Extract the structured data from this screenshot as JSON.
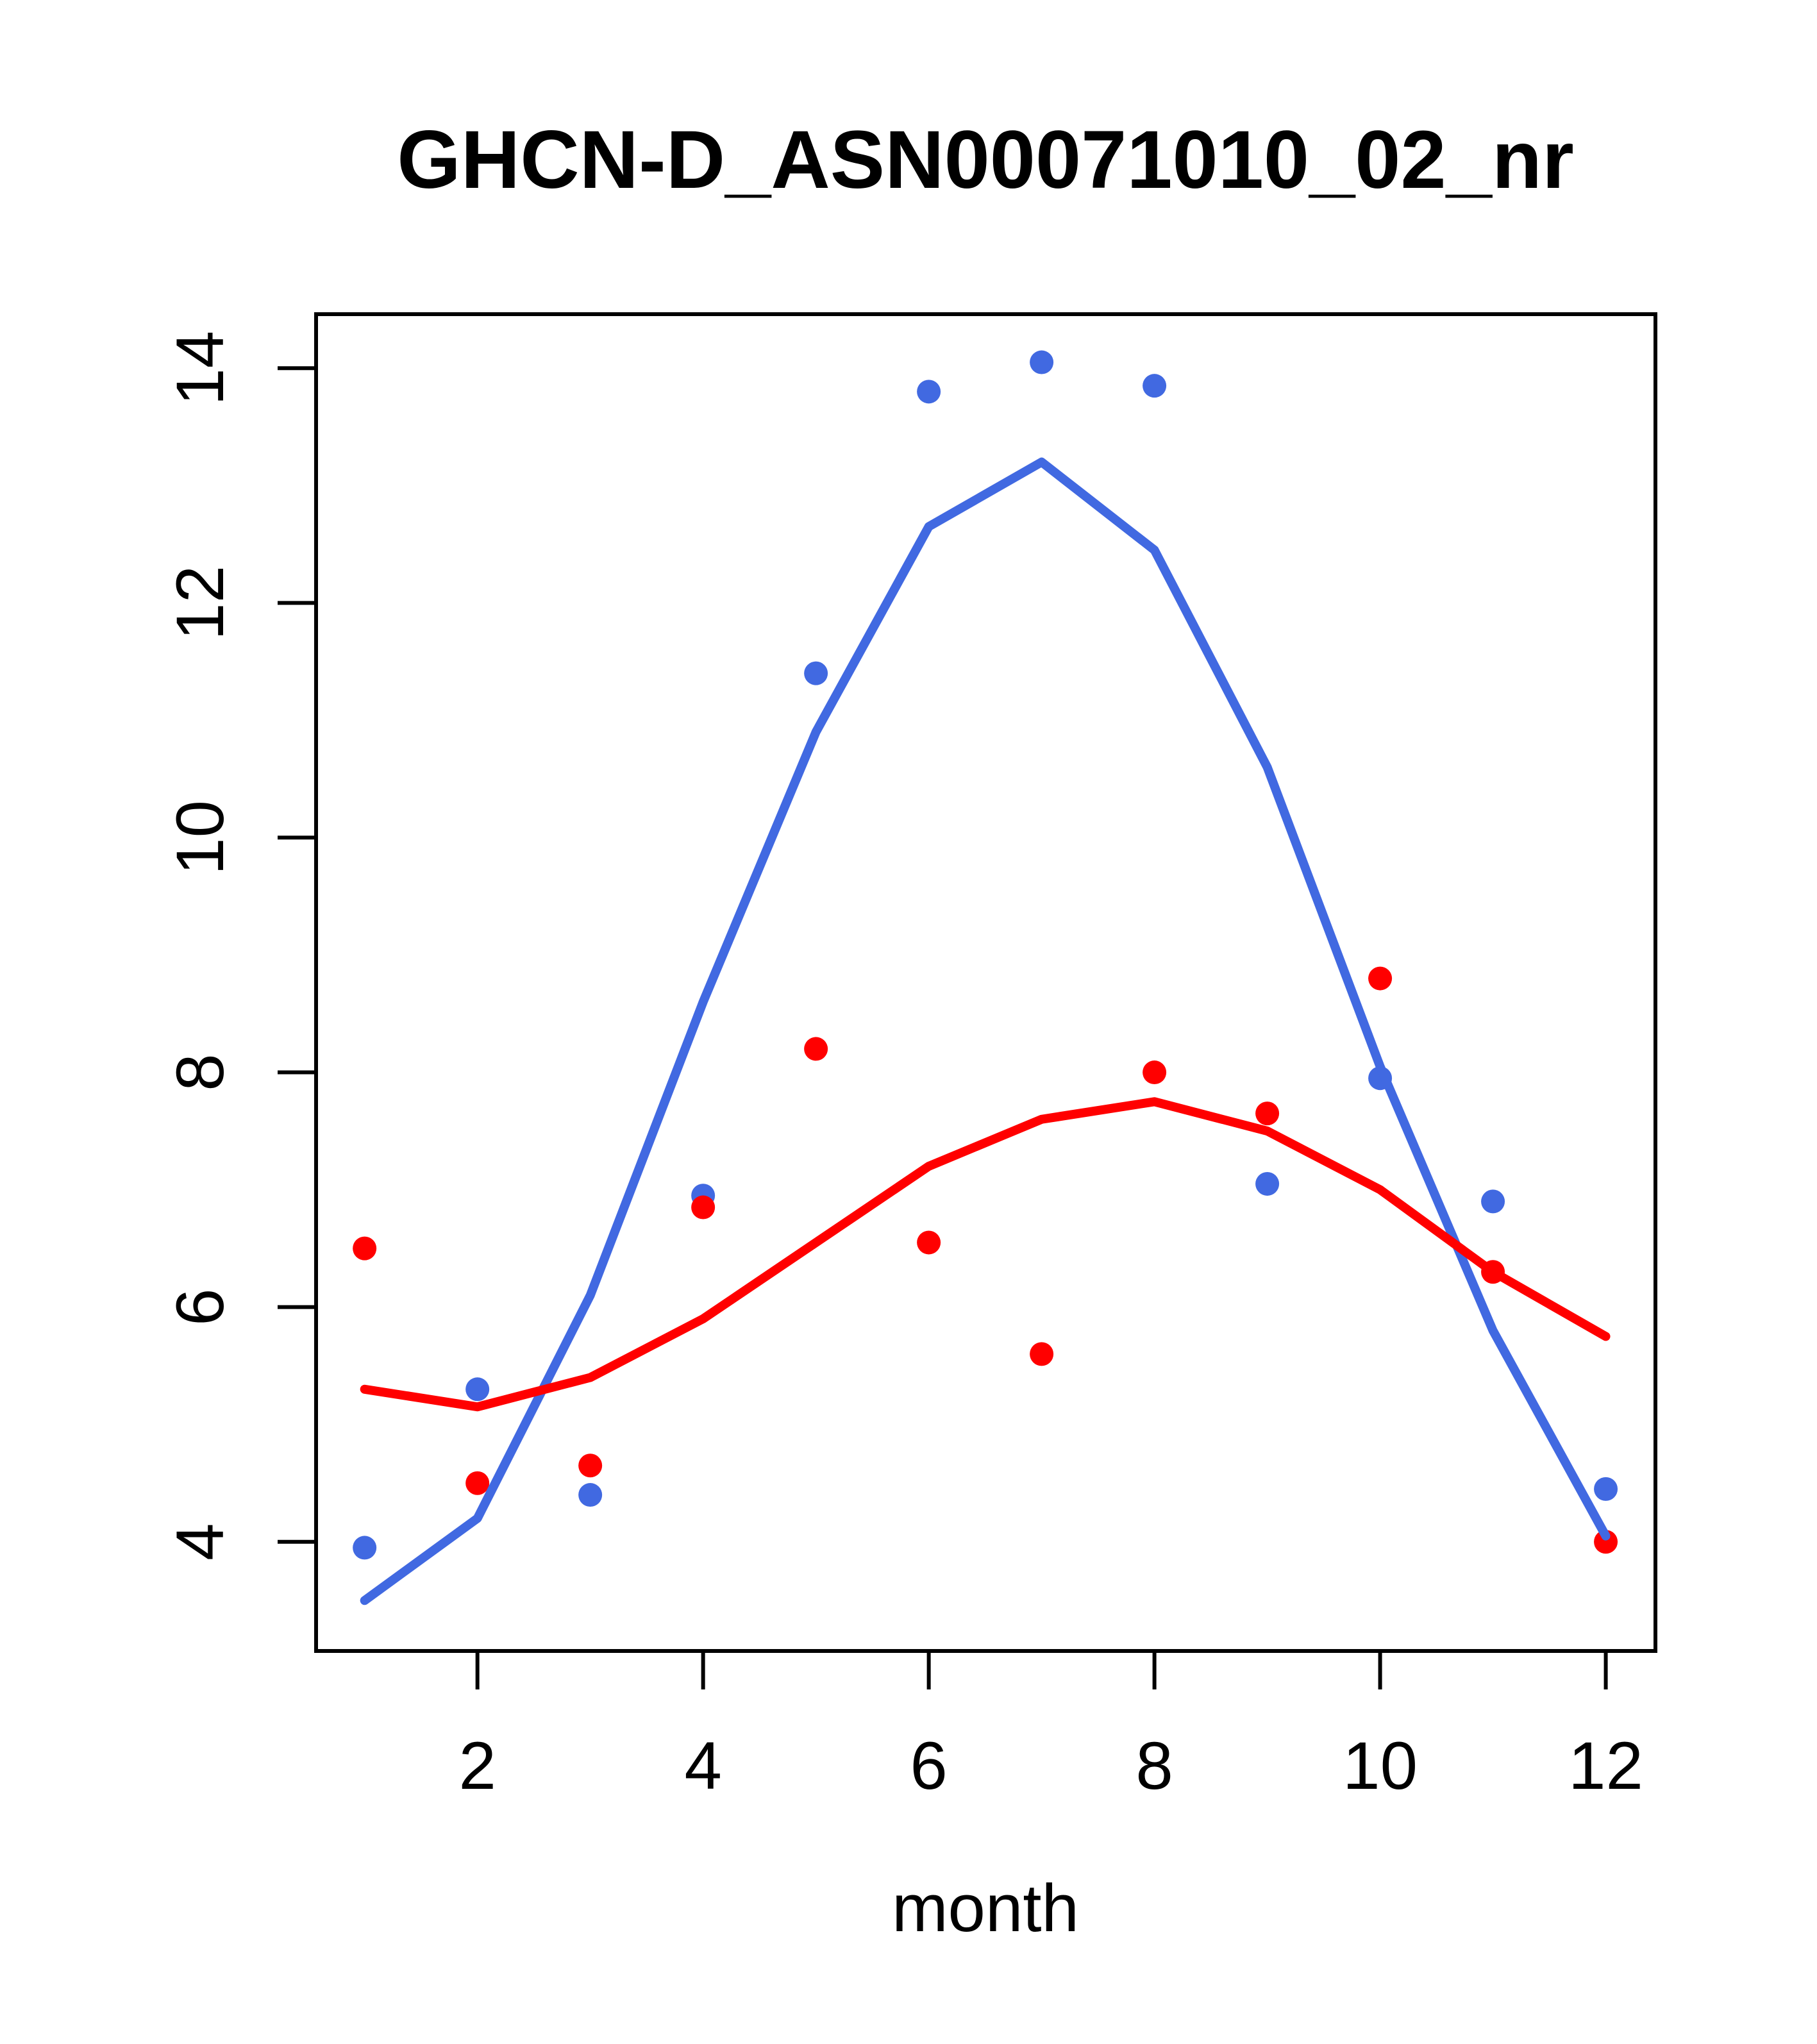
{
  "title": "GHCN-D_ASN00071010_02_nr",
  "chart_data": {
    "type": "scatter",
    "title": "GHCN-D_ASN00071010_02_nr",
    "xlabel": "month",
    "ylabel": "",
    "x": [
      1,
      2,
      3,
      4,
      5,
      6,
      7,
      8,
      9,
      10,
      11,
      12
    ],
    "xlim": [
      0.57,
      12.44
    ],
    "ylim": [
      3.07,
      14.46
    ],
    "xticks": [
      2,
      4,
      6,
      8,
      10,
      12
    ],
    "yticks": [
      4,
      6,
      8,
      10,
      12,
      14
    ],
    "grid": false,
    "legend": "none",
    "colors": {
      "blue": "#4169E1",
      "red": "#FF0000",
      "axis": "#000000",
      "background": "#FFFFFF"
    },
    "series": [
      {
        "name": "blue-monthly-points",
        "kind": "points",
        "color_key": "blue",
        "values": [
          3.95,
          5.3,
          4.4,
          6.95,
          11.4,
          13.8,
          14.05,
          13.85,
          7.05,
          7.95,
          6.9,
          4.45
        ]
      },
      {
        "name": "red-monthly-points",
        "kind": "points",
        "color_key": "red",
        "values": [
          6.5,
          4.5,
          4.65,
          6.85,
          8.2,
          6.55,
          5.6,
          8.0,
          7.65,
          8.8,
          6.3,
          4.0
        ]
      },
      {
        "name": "blue-lowess-line",
        "kind": "line",
        "color_key": "blue",
        "values": [
          3.5,
          4.2,
          6.1,
          8.6,
          10.9,
          12.65,
          13.2,
          12.45,
          10.6,
          8.05,
          5.8,
          4.05
        ]
      },
      {
        "name": "red-lowess-line",
        "kind": "line",
        "color_key": "red",
        "values": [
          5.3,
          5.15,
          5.4,
          5.9,
          6.55,
          7.2,
          7.6,
          7.75,
          7.5,
          7.0,
          6.3,
          5.75
        ]
      }
    ]
  }
}
